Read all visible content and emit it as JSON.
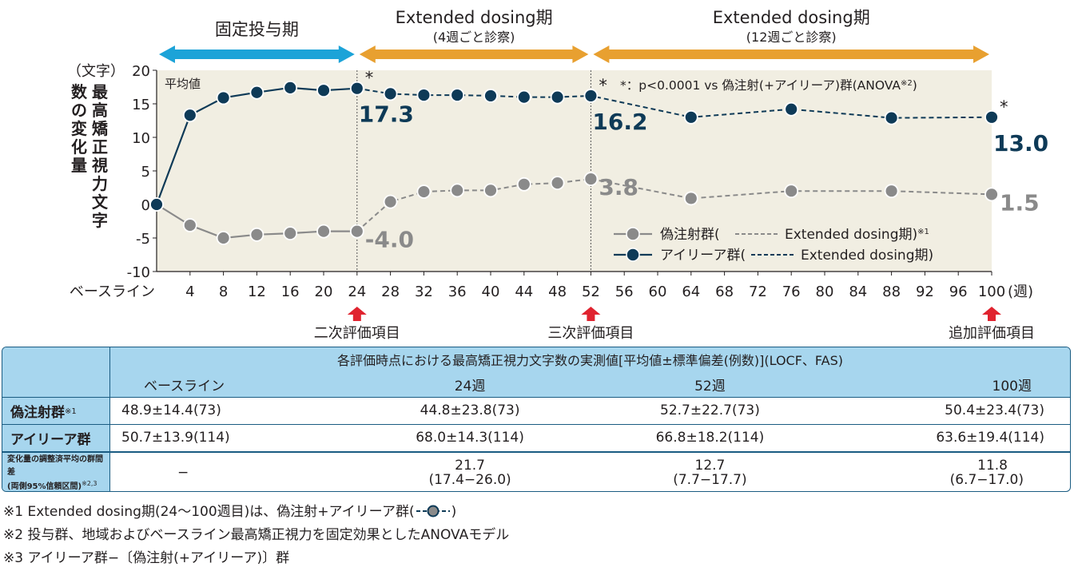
{
  "chart_data": {
    "type": "line",
    "y_unit_label": "（文字）",
    "ylabel": "最高矯正視力文字数の変化量",
    "x_unit_label": "(週)",
    "baseline_label": "ベースライン",
    "xticks": [
      4,
      8,
      12,
      16,
      20,
      24,
      28,
      32,
      36,
      40,
      44,
      48,
      52,
      56,
      60,
      64,
      68,
      72,
      76,
      80,
      84,
      88,
      92,
      96,
      100
    ],
    "yticks": [
      20,
      15,
      10,
      5,
      0,
      -5,
      -10
    ],
    "ylim": [
      -10,
      20
    ],
    "xlim": [
      0,
      100
    ],
    "mean_label": "平均値",
    "series": [
      {
        "name": "アイリーア群",
        "color": "#0e3a57",
        "x": [
          0,
          4,
          8,
          12,
          16,
          20,
          24,
          28,
          32,
          36,
          40,
          44,
          48,
          52,
          64,
          76,
          88,
          100
        ],
        "y": [
          0,
          13.3,
          15.9,
          16.7,
          17.4,
          17.0,
          17.3,
          16.5,
          16.3,
          16.3,
          16.2,
          16.0,
          16.0,
          16.2,
          13.0,
          14.2,
          12.9,
          13.0
        ],
        "dashed_from": 24
      },
      {
        "name": "偽注射群",
        "color": "#8a8a8a",
        "x": [
          0,
          4,
          8,
          12,
          16,
          20,
          24,
          28,
          32,
          36,
          40,
          44,
          48,
          52,
          64,
          76,
          88,
          100
        ],
        "y": [
          0,
          -3.1,
          -5.0,
          -4.5,
          -4.3,
          -4.0,
          -4.0,
          0.4,
          1.9,
          2.1,
          2.1,
          3.0,
          3.2,
          3.8,
          0.9,
          2.0,
          2.0,
          1.5
        ],
        "dashed_from": 24
      }
    ],
    "data_labels": [
      {
        "series": "アイリーア群",
        "x": 24,
        "text": "17.3"
      },
      {
        "series": "アイリーア群",
        "x": 52,
        "text": "16.2"
      },
      {
        "series": "アイリーア群",
        "x": 100,
        "text": "13.0"
      },
      {
        "series": "偽注射群",
        "x": 24,
        "text": "-4.0"
      },
      {
        "series": "偽注射群",
        "x": 52,
        "text": "3.8"
      },
      {
        "series": "偽注射群",
        "x": 100,
        "text": "1.5"
      }
    ],
    "significance_mark": "*",
    "significance_x": [
      24,
      52,
      100
    ],
    "significance_note": "*：p<0.0001 vs 偽注射(+アイリーア)群(ANOVA",
    "significance_note_sup": "※2",
    "significance_note_end": ")",
    "legend": [
      {
        "name": "偽注射群(",
        "extended": "Extended dosing期)",
        "sup": "※1"
      },
      {
        "name": "アイリーア群(",
        "extended": "Extended dosing期)",
        "sup": ""
      }
    ],
    "periods": [
      {
        "label": "固定投与期",
        "sub": "",
        "from": 0,
        "to": 24,
        "color": "#1ca3d8"
      },
      {
        "label": "Extended dosing期",
        "sub": "(4週ごと診察)",
        "from": 24,
        "to": 52,
        "color": "#e8a030"
      },
      {
        "label": "Extended dosing期",
        "sub": "(12週ごと診察)",
        "from": 52,
        "to": 100,
        "color": "#e8a030"
      }
    ],
    "eval_markers": [
      {
        "x": 24,
        "label": "二次評価項目"
      },
      {
        "x": 52,
        "label": "三次評価項目"
      },
      {
        "x": 100,
        "label": "追加評価項目"
      }
    ],
    "colors": {
      "plot_bg": "#f1eee2",
      "arrow_red": "#e0232f"
    }
  },
  "table": {
    "title": "各評価時点における最高矯正視力文字数の実測値[平均値±標準偏差(例数)](LOCF、FAS)",
    "columns": [
      "ベースライン",
      "24週",
      "52週",
      "100週"
    ],
    "rows": [
      {
        "label": "偽注射群",
        "sup": "※1",
        "values": [
          "48.9±14.4(73)",
          "44.8±23.8(73)",
          "52.7±22.7(73)",
          "50.4±23.4(73)"
        ]
      },
      {
        "label": "アイリーア群",
        "sup": "",
        "values": [
          "50.7±13.9(114)",
          "68.0±14.3(114)",
          "66.8±18.2(114)",
          "63.6±19.4(114)"
        ]
      }
    ],
    "diff_row": {
      "label_line1": "変化量の調整済平均の群間差",
      "label_line2": "(両側95%信頼区間)",
      "label_sup": "※2,3",
      "values": [
        {
          "main": "−",
          "ci": ""
        },
        {
          "main": "21.7",
          "ci": "(17.4−26.0)"
        },
        {
          "main": "12.7",
          "ci": "(7.7−17.7)"
        },
        {
          "main": "11.8",
          "ci": "(6.7−17.0)"
        }
      ]
    }
  },
  "footnotes": [
    "※1 Extended dosing期(24〜100週目)は、偽注射+アイリーア群(",
    "※2 投与群、地域およびベースライン最高矯正視力を固定効果としたANOVAモデル",
    "※3 アイリーア群−〔偽注射(+アイリーア)〕群"
  ],
  "footnote1_end": ")"
}
